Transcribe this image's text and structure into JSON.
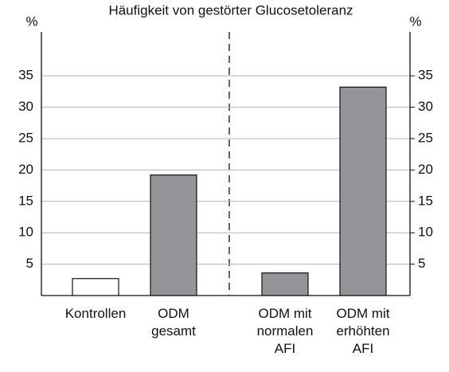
{
  "chart_data": {
    "type": "bar",
    "title": "Häufigkeit von gestörter Glucosetoleranz",
    "y_label": "%",
    "y2_label": "%",
    "categories": [
      "Kontrollen",
      "ODM\ngesamt",
      "ODM mit\nnormalen\nAFI",
      "ODM mit\nerhöhten\nAFI"
    ],
    "values": [
      2.7,
      19.2,
      3.6,
      33.2
    ],
    "colors": [
      "#ffffff",
      "#939598",
      "#939598",
      "#939598"
    ],
    "ylim": [
      0,
      42
    ],
    "yticks": [
      5,
      10,
      15,
      20,
      25,
      30,
      35
    ],
    "grid": true
  }
}
